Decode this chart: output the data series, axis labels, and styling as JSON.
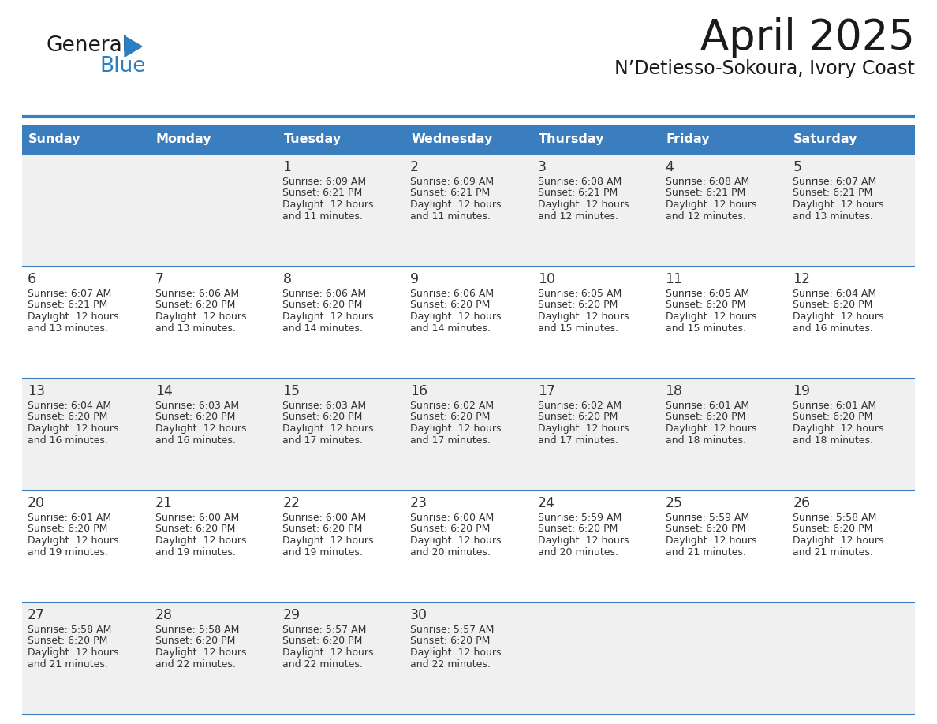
{
  "title": "April 2025",
  "subtitle": "N’Detiesso-Sokoura, Ivory Coast",
  "days_of_week": [
    "Sunday",
    "Monday",
    "Tuesday",
    "Wednesday",
    "Thursday",
    "Friday",
    "Saturday"
  ],
  "header_bg": "#3a7ebf",
  "header_text_color": "#ffffff",
  "row_bg_odd": "#f0f0f0",
  "row_bg_even": "#ffffff",
  "cell_text_color": "#333333",
  "day_num_color": "#333333",
  "divider_color": "#3a7ebf",
  "calendar_data": [
    [
      {
        "day": "",
        "sunrise": "",
        "sunset": "",
        "daylight_min": ""
      },
      {
        "day": "",
        "sunrise": "",
        "sunset": "",
        "daylight_min": ""
      },
      {
        "day": "1",
        "sunrise": "6:09 AM",
        "sunset": "6:21 PM",
        "daylight_min": "11 minutes."
      },
      {
        "day": "2",
        "sunrise": "6:09 AM",
        "sunset": "6:21 PM",
        "daylight_min": "11 minutes."
      },
      {
        "day": "3",
        "sunrise": "6:08 AM",
        "sunset": "6:21 PM",
        "daylight_min": "12 minutes."
      },
      {
        "day": "4",
        "sunrise": "6:08 AM",
        "sunset": "6:21 PM",
        "daylight_min": "12 minutes."
      },
      {
        "day": "5",
        "sunrise": "6:07 AM",
        "sunset": "6:21 PM",
        "daylight_min": "13 minutes."
      }
    ],
    [
      {
        "day": "6",
        "sunrise": "6:07 AM",
        "sunset": "6:21 PM",
        "daylight_min": "13 minutes."
      },
      {
        "day": "7",
        "sunrise": "6:06 AM",
        "sunset": "6:20 PM",
        "daylight_min": "13 minutes."
      },
      {
        "day": "8",
        "sunrise": "6:06 AM",
        "sunset": "6:20 PM",
        "daylight_min": "14 minutes."
      },
      {
        "day": "9",
        "sunrise": "6:06 AM",
        "sunset": "6:20 PM",
        "daylight_min": "14 minutes."
      },
      {
        "day": "10",
        "sunrise": "6:05 AM",
        "sunset": "6:20 PM",
        "daylight_min": "15 minutes."
      },
      {
        "day": "11",
        "sunrise": "6:05 AM",
        "sunset": "6:20 PM",
        "daylight_min": "15 minutes."
      },
      {
        "day": "12",
        "sunrise": "6:04 AM",
        "sunset": "6:20 PM",
        "daylight_min": "16 minutes."
      }
    ],
    [
      {
        "day": "13",
        "sunrise": "6:04 AM",
        "sunset": "6:20 PM",
        "daylight_min": "16 minutes."
      },
      {
        "day": "14",
        "sunrise": "6:03 AM",
        "sunset": "6:20 PM",
        "daylight_min": "16 minutes."
      },
      {
        "day": "15",
        "sunrise": "6:03 AM",
        "sunset": "6:20 PM",
        "daylight_min": "17 minutes."
      },
      {
        "day": "16",
        "sunrise": "6:02 AM",
        "sunset": "6:20 PM",
        "daylight_min": "17 minutes."
      },
      {
        "day": "17",
        "sunrise": "6:02 AM",
        "sunset": "6:20 PM",
        "daylight_min": "17 minutes."
      },
      {
        "day": "18",
        "sunrise": "6:01 AM",
        "sunset": "6:20 PM",
        "daylight_min": "18 minutes."
      },
      {
        "day": "19",
        "sunrise": "6:01 AM",
        "sunset": "6:20 PM",
        "daylight_min": "18 minutes."
      }
    ],
    [
      {
        "day": "20",
        "sunrise": "6:01 AM",
        "sunset": "6:20 PM",
        "daylight_min": "19 minutes."
      },
      {
        "day": "21",
        "sunrise": "6:00 AM",
        "sunset": "6:20 PM",
        "daylight_min": "19 minutes."
      },
      {
        "day": "22",
        "sunrise": "6:00 AM",
        "sunset": "6:20 PM",
        "daylight_min": "19 minutes."
      },
      {
        "day": "23",
        "sunrise": "6:00 AM",
        "sunset": "6:20 PM",
        "daylight_min": "20 minutes."
      },
      {
        "day": "24",
        "sunrise": "5:59 AM",
        "sunset": "6:20 PM",
        "daylight_min": "20 minutes."
      },
      {
        "day": "25",
        "sunrise": "5:59 AM",
        "sunset": "6:20 PM",
        "daylight_min": "21 minutes."
      },
      {
        "day": "26",
        "sunrise": "5:58 AM",
        "sunset": "6:20 PM",
        "daylight_min": "21 minutes."
      }
    ],
    [
      {
        "day": "27",
        "sunrise": "5:58 AM",
        "sunset": "6:20 PM",
        "daylight_min": "21 minutes."
      },
      {
        "day": "28",
        "sunrise": "5:58 AM",
        "sunset": "6:20 PM",
        "daylight_min": "22 minutes."
      },
      {
        "day": "29",
        "sunrise": "5:57 AM",
        "sunset": "6:20 PM",
        "daylight_min": "22 minutes."
      },
      {
        "day": "30",
        "sunrise": "5:57 AM",
        "sunset": "6:20 PM",
        "daylight_min": "22 minutes."
      },
      {
        "day": "",
        "sunrise": "",
        "sunset": "",
        "daylight_min": ""
      },
      {
        "day": "",
        "sunrise": "",
        "sunset": "",
        "daylight_min": ""
      },
      {
        "day": "",
        "sunrise": "",
        "sunset": "",
        "daylight_min": ""
      }
    ]
  ],
  "logo_text1": "General",
  "logo_text2": "Blue",
  "logo_text1_color": "#1a1a1a",
  "logo_text2_color": "#2b7ec1",
  "logo_triangle_color": "#2b7ec1",
  "title_color": "#1a1a1a",
  "subtitle_color": "#1a1a1a"
}
